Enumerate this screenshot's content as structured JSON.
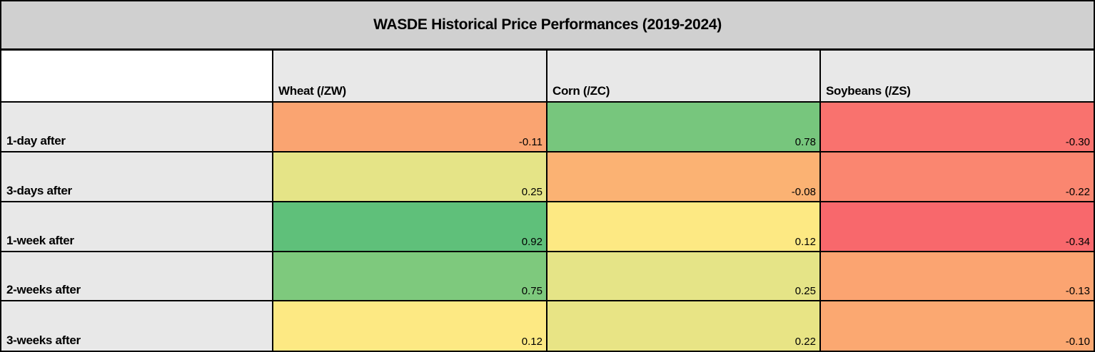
{
  "title": "WASDE Historical Price Performances (2019-2024)",
  "table": {
    "corner_label": "",
    "columns": [
      "Wheat (/ZW)",
      "Corn (/ZC)",
      "Soybeans (/ZS)"
    ],
    "rows": [
      {
        "label": "1-day after",
        "cells": [
          {
            "value": "-0.11",
            "bg": "#FAA471"
          },
          {
            "value": "0.78",
            "bg": "#77C67D"
          },
          {
            "value": "-0.30",
            "bg": "#F9726E"
          }
        ]
      },
      {
        "label": "3-days after",
        "cells": [
          {
            "value": "0.25",
            "bg": "#E5E487"
          },
          {
            "value": "-0.08",
            "bg": "#FBB273"
          },
          {
            "value": "-0.22",
            "bg": "#FA8670"
          }
        ]
      },
      {
        "label": "1-week after",
        "cells": [
          {
            "value": "0.92",
            "bg": "#5FC07A"
          },
          {
            "value": "0.12",
            "bg": "#FDE983"
          },
          {
            "value": "-0.34",
            "bg": "#F8686C"
          }
        ]
      },
      {
        "label": "2-weeks after",
        "cells": [
          {
            "value": "0.75",
            "bg": "#7EC97D"
          },
          {
            "value": "0.25",
            "bg": "#E5E487"
          },
          {
            "value": "-0.13",
            "bg": "#FBA471"
          }
        ]
      },
      {
        "label": "3-weeks after",
        "cells": [
          {
            "value": "0.12",
            "bg": "#FDE983"
          },
          {
            "value": "0.22",
            "bg": "#E8E485"
          },
          {
            "value": "-0.10",
            "bg": "#FBA871"
          }
        ]
      }
    ]
  },
  "colors": {
    "title_bg": "#D0D0D0",
    "header_bg": "#E8E8E8",
    "label_bg": "#E8E8E8",
    "corner_bg": "#FFFFFF",
    "border": "#000000",
    "negative_extreme": "#F8686C",
    "midpoint_yellow": "#FDE983",
    "positive_extreme": "#5FC07A"
  },
  "chart_data": {
    "type": "heatmap",
    "title": "WASDE Historical Price Performances (2019-2024)",
    "columns": [
      "Wheat (/ZW)",
      "Corn (/ZC)",
      "Soybeans (/ZS)"
    ],
    "rows": [
      "1-day after",
      "3-days after",
      "1-week after",
      "2-weeks after",
      "3-weeks after"
    ],
    "values": [
      [
        -0.11,
        0.78,
        -0.3
      ],
      [
        0.25,
        -0.08,
        -0.22
      ],
      [
        0.92,
        0.12,
        -0.34
      ],
      [
        0.75,
        0.25,
        -0.13
      ],
      [
        0.12,
        0.22,
        -0.1
      ]
    ],
    "color_scale": "red-yellow-green",
    "value_range": [
      -0.34,
      0.92
    ],
    "legend": "off",
    "grid": "on"
  }
}
